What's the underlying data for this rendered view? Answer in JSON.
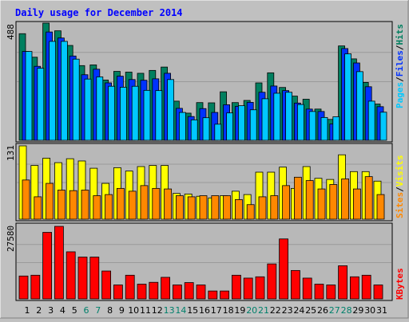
{
  "chart_data": {
    "type": "bar",
    "title": "Daily usage for December 2014",
    "colors": {
      "background": "#c0c0c0",
      "plot": "#b8b8b8",
      "title": "#0000ff",
      "hits": "#007f5f",
      "files": "#0032ff",
      "pages": "#00c8ff",
      "visits": "#ffff00",
      "sites": "#ff8800",
      "kbytes": "#ff0000",
      "weekend_label": "#00806b",
      "weekday_label": "#000000"
    },
    "days": [
      "1",
      "2",
      "3",
      "4",
      "5",
      "6",
      "7",
      "8",
      "9",
      "10",
      "11",
      "12",
      "13",
      "14",
      "15",
      "16",
      "17",
      "18",
      "19",
      "20",
      "21",
      "22",
      "23",
      "24",
      "25",
      "26",
      "27",
      "28",
      "29",
      "30",
      "31"
    ],
    "weekend_days": [
      "6",
      "7",
      "13",
      "14",
      "20",
      "21",
      "27",
      "28"
    ],
    "panels": [
      {
        "id": "hits_files_pages",
        "ymax_label": "488",
        "ymax": 488,
        "legend": [
          {
            "label": "Hits",
            "color": "#007f5f"
          },
          {
            "label": "Files",
            "color": "#0032ff"
          },
          {
            "label": "Pages",
            "color": "#00c8ff"
          }
        ],
        "series": [
          {
            "name": "Hits",
            "values": [
              444,
              346,
              488,
              456,
              395,
              311,
              314,
              251,
              287,
              284,
              279,
              291,
              305,
              163,
              113,
              157,
              156,
              202,
              157,
              166,
              239,
              281,
              220,
              184,
              171,
              130,
              87,
              393,
              339,
              241,
              151
            ]
          },
          {
            "name": "Files",
            "values": [
              370,
              308,
              451,
              426,
              351,
              273,
              296,
              239,
              267,
              253,
              250,
              256,
              279,
              133,
              99,
              132,
              116,
              148,
              141,
              158,
              200,
              226,
              207,
              155,
              130,
              120,
              68,
              382,
              322,
              223,
              140
            ]
          },
          {
            "name": "Pages",
            "values": [
              370,
              300,
              412,
              412,
              338,
              255,
              264,
              225,
              221,
              225,
              208,
              207,
              253,
              116,
              85,
              94,
              67,
              114,
              144,
              127,
              173,
              196,
              200,
              149,
              120,
              95,
              98,
              360,
              286,
              163,
              117
            ]
          }
        ]
      },
      {
        "id": "visits_sites",
        "ymax_label": "131",
        "ymax": 131,
        "legend": [
          {
            "label": "Sites",
            "color": "#ff8800"
          },
          {
            "label": "Visits",
            "color": "#ffff00"
          }
        ],
        "series": [
          {
            "name": "Visits",
            "values": [
              131,
              96,
              109,
              101,
              108,
              104,
              91,
              64,
              92,
              86,
              94,
              96,
              96,
              46,
              45,
              41,
              38,
              42,
              50,
              44,
              84,
              84,
              93,
              55,
              94,
              73,
              71,
              115,
              85,
              85,
              68
            ]
          },
          {
            "name": "Sites",
            "values": [
              70,
              40,
              64,
              52,
              51,
              52,
              42,
              44,
              55,
              50,
              60,
              55,
              54,
              42,
              40,
              42,
              42,
              42,
              35,
              26,
              40,
              42,
              60,
              75,
              69,
              54,
              62,
              72,
              54,
              76,
              44
            ]
          }
        ]
      },
      {
        "id": "kbytes",
        "ymax_label": "27580",
        "ymax": 27580,
        "legend": [
          {
            "label": "KBytes",
            "color": "#ff0000"
          }
        ],
        "series": [
          {
            "name": "KBytes",
            "values": [
              8700,
              9000,
              25300,
              27580,
              17900,
              15900,
              15900,
              10600,
              5300,
              9000,
              5600,
              6300,
              8200,
              5300,
              6200,
              5300,
              3000,
              3000,
              9000,
              7900,
              8400,
              13300,
              22800,
              10800,
              7900,
              5600,
              5300,
              12600,
              8400,
              9000,
              5300
            ]
          }
        ]
      }
    ]
  }
}
